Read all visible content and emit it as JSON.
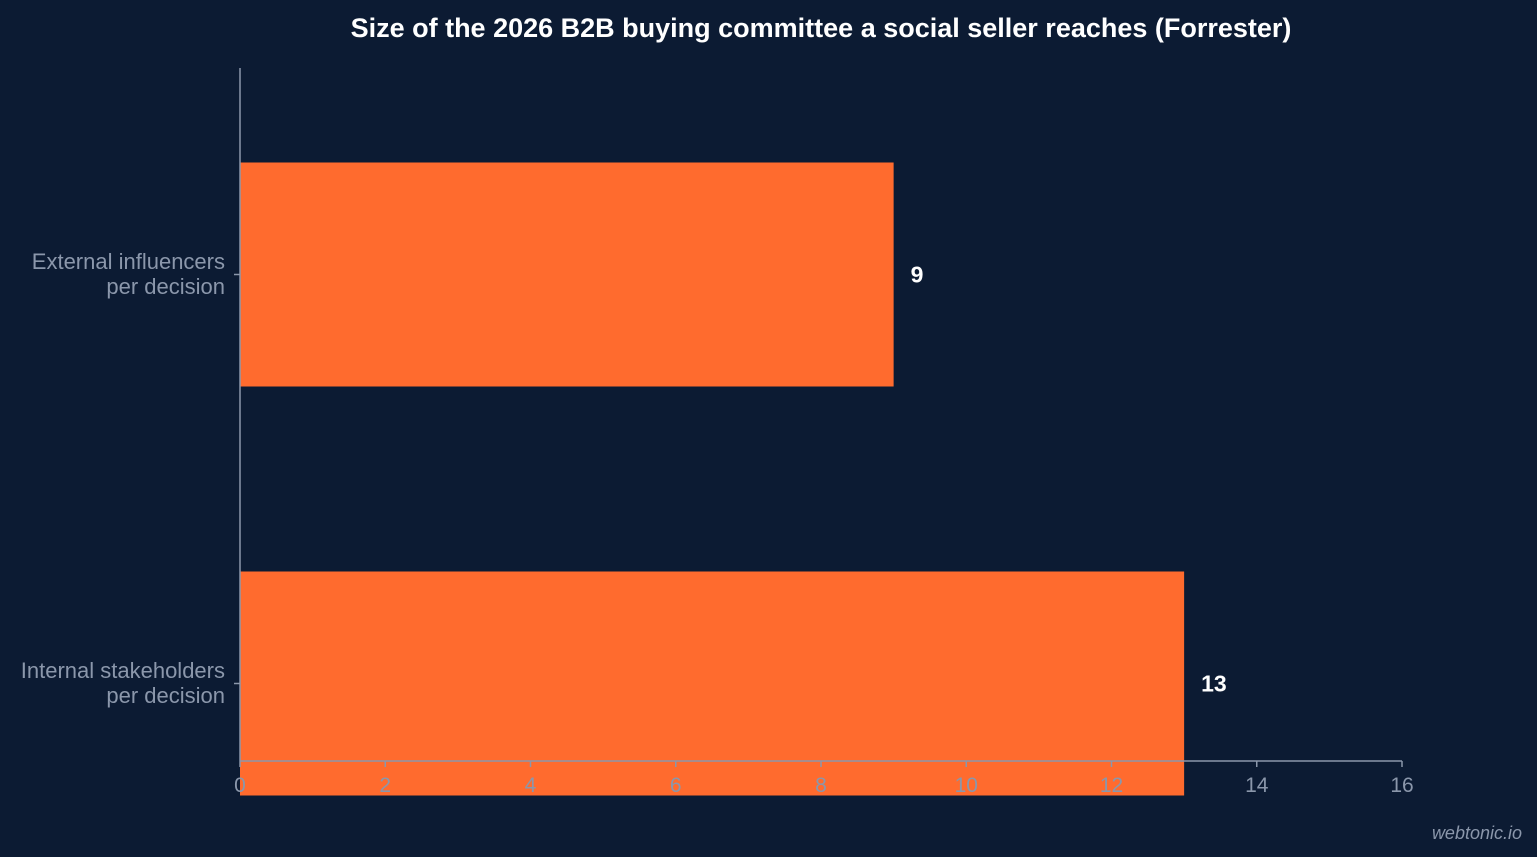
{
  "chart_data": {
    "type": "bar",
    "orientation": "horizontal",
    "title": "Size of the 2026 B2B buying committee a social seller reaches (Forrester)",
    "categories": [
      [
        "External influencers",
        "per decision"
      ],
      [
        "Internal stakeholders",
        "per decision"
      ]
    ],
    "values": [
      9,
      13
    ],
    "data_labels": [
      "9",
      "13"
    ],
    "xlabel": "",
    "ylabel": "",
    "xlim": [
      0,
      16
    ],
    "xticks": [
      0,
      2,
      4,
      6,
      8,
      10,
      12,
      14,
      16
    ],
    "grid": false,
    "legend": "none",
    "bar_color": "#ff6b2e",
    "background_color": "#0c1b33"
  },
  "watermark": "webtonic.io"
}
